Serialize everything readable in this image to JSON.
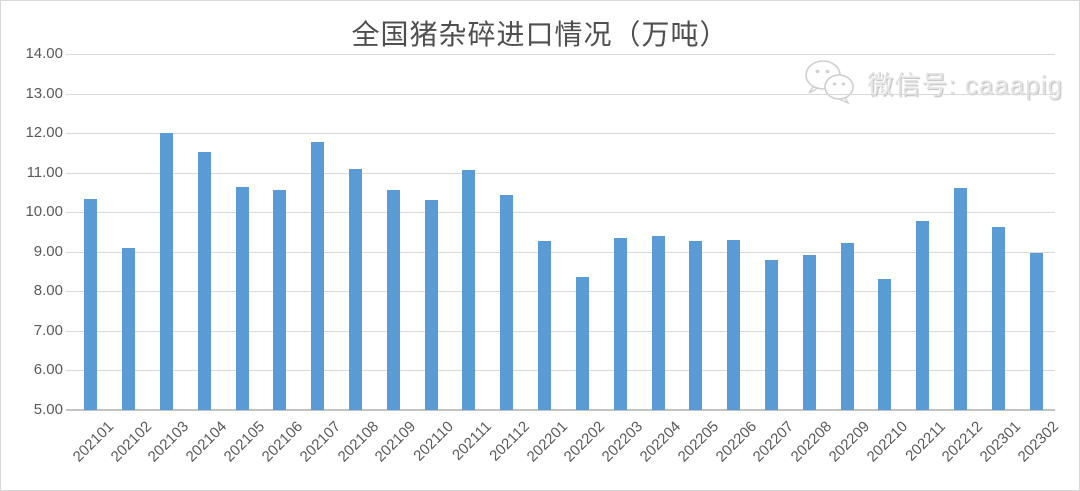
{
  "chart_data": {
    "type": "bar",
    "title": "全国猪杂碎进口情况（万吨）",
    "categories": [
      "202101",
      "202102",
      "202103",
      "202104",
      "202105",
      "202106",
      "202107",
      "202108",
      "202109",
      "202110",
      "202111",
      "202112",
      "202201",
      "202202",
      "202203",
      "202204",
      "202205",
      "202206",
      "202207",
      "202208",
      "202209",
      "202210",
      "202211",
      "202212",
      "202301",
      "202302"
    ],
    "values": [
      10.33,
      9.09,
      12.0,
      11.52,
      10.65,
      10.57,
      11.78,
      11.09,
      10.57,
      10.3,
      11.07,
      10.43,
      9.26,
      8.36,
      9.35,
      9.4,
      9.26,
      9.31,
      8.78,
      8.92,
      9.22,
      8.32,
      9.79,
      10.62,
      9.62,
      8.96
    ],
    "xlabel": "",
    "ylabel": "",
    "ylim": [
      5,
      14
    ],
    "ytick_step": 1,
    "ytick_decimals": 2,
    "grid": true,
    "legend_position": "none",
    "bar_color": "#5B9BD5",
    "gridline_color": "#d9d9d9",
    "axis_color": "#c3c3c3",
    "text_color": "#595959"
  },
  "watermark": {
    "icon": "wechat-icon",
    "text": "微信号: caaapig"
  }
}
